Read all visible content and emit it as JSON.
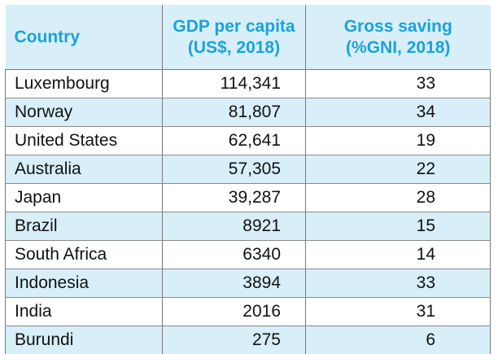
{
  "chart_data": {
    "type": "table",
    "columns": [
      "Country",
      "GDP per capita (US$, 2018)",
      "Gross saving (%GNI, 2018)"
    ],
    "headers": [
      {
        "line1": "Country",
        "line2": ""
      },
      {
        "line1": "GDP per capita",
        "line2": "(US$, 2018)"
      },
      {
        "line1": "Gross saving",
        "line2": "(%GNI, 2018)"
      }
    ],
    "rows": [
      {
        "country": "Luxembourg",
        "gdp": "114,341",
        "saving": "33"
      },
      {
        "country": "Norway",
        "gdp": "81,807",
        "saving": "34"
      },
      {
        "country": "United States",
        "gdp": "62,641",
        "saving": "19"
      },
      {
        "country": "Australia",
        "gdp": "57,305",
        "saving": "22"
      },
      {
        "country": "Japan",
        "gdp": "39,287",
        "saving": "28"
      },
      {
        "country": "Brazil",
        "gdp": "8921",
        "saving": "15"
      },
      {
        "country": "South Africa",
        "gdp": "6340",
        "saving": "14"
      },
      {
        "country": "Indonesia",
        "gdp": "3894",
        "saving": "33"
      },
      {
        "country": "India",
        "gdp": "2016",
        "saving": "31"
      },
      {
        "country": "Burundi",
        "gdp": "275",
        "saving": "6"
      }
    ]
  },
  "colors": {
    "header_text": "#1aa3d9",
    "band_fill": "#d8eef8",
    "body_text": "#111111",
    "border": "#7a7a7a"
  }
}
